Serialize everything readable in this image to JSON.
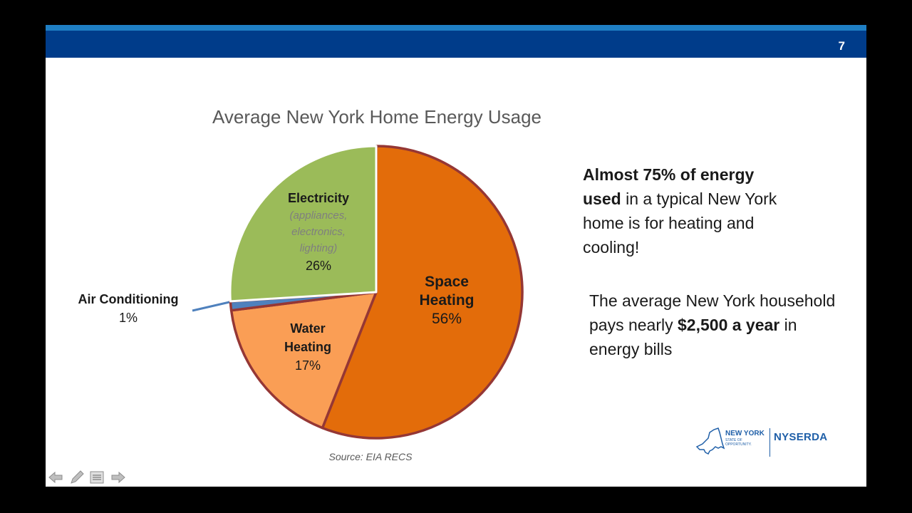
{
  "slide": {
    "number": "7"
  },
  "chart_data": {
    "type": "pie",
    "title": "Average New York Home Energy Usage",
    "slices": [
      {
        "name": "Space Heating",
        "value": 56,
        "label": "56%",
        "color": "#e36c0a"
      },
      {
        "name": "Water Heating",
        "value": 17,
        "label": "17%",
        "color": "#fa9e55"
      },
      {
        "name": "Air Conditioning",
        "value": 1,
        "label": "1%",
        "color": "#4f81bd"
      },
      {
        "name": "Electricity",
        "note": "(appliances, electronics, lighting)",
        "value": 26,
        "label": "26%",
        "color": "#9bbb59"
      }
    ],
    "outline_color": "#953735",
    "source": "Source: EIA RECS"
  },
  "labels": {
    "electricity": {
      "name": "Electricity",
      "sub1": "(appliances,",
      "sub2": "electronics,",
      "sub3": "lighting)",
      "pct": "26%"
    },
    "space": {
      "line1": "Space",
      "line2": "Heating",
      "pct": "56%"
    },
    "water": {
      "line1": "Water",
      "line2": "Heating",
      "pct": "17%"
    },
    "ac": {
      "name": "Air Conditioning",
      "pct": "1%"
    }
  },
  "callouts": {
    "first": {
      "bold1": "Almost 75% of energy",
      "bold2": "used",
      "rest": " in a typical New York home is for heating and cooling!"
    },
    "second": {
      "text": "The average New York household pays nearly ",
      "bold": "$2,500 a year",
      "rest": " in energy bills"
    }
  },
  "logo": {
    "ny": "NEW YORK",
    "ny_sub": "STATE OF OPPORTUNITY.",
    "nyserda": "NYSERDA"
  },
  "controls": [
    "back-arrow-icon",
    "pen-icon",
    "menu-icon",
    "forward-arrow-icon"
  ]
}
